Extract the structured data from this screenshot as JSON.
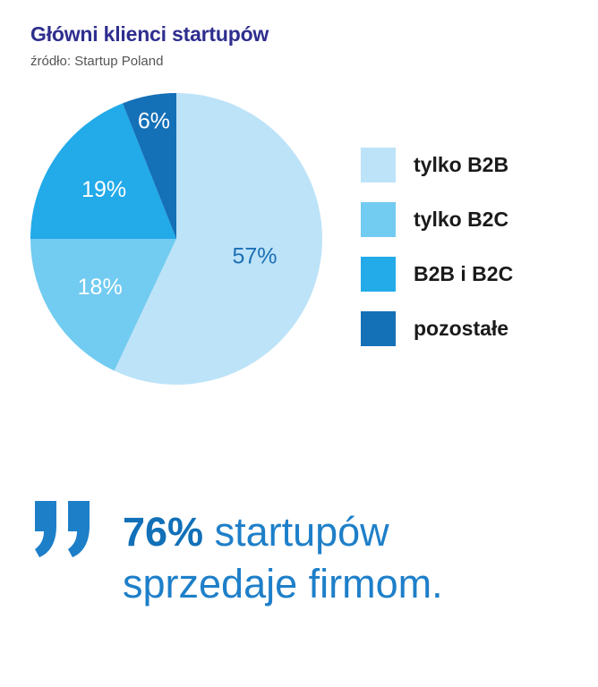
{
  "header": {
    "title": "Główni klienci startupów",
    "subtitle": "źródło: Startup Poland"
  },
  "chart_data": {
    "type": "pie",
    "title": "Główni klienci startupów",
    "subtitle": "źródło: Startup Poland",
    "slices": [
      {
        "label": "tylko B2B",
        "value": 57,
        "display": "57%",
        "color": "#bde3f8",
        "label_color": "#1c6fb5"
      },
      {
        "label": "tylko B2C",
        "value": 18,
        "display": "18%",
        "color": "#72cbf1",
        "label_color": "#ffffff"
      },
      {
        "label": "B2B i B2C",
        "value": 19,
        "display": "19%",
        "color": "#22aae9",
        "label_color": "#ffffff"
      },
      {
        "label": "pozostałe",
        "value": 6,
        "display": "6%",
        "color": "#1470b7",
        "label_color": "#ffffff"
      }
    ],
    "legend_placement": "right"
  },
  "quote": {
    "highlight": "76%",
    "line1_rest": " startupów",
    "line2": "sprzedaje firmom.",
    "mark_color": "#1e7fc9"
  }
}
